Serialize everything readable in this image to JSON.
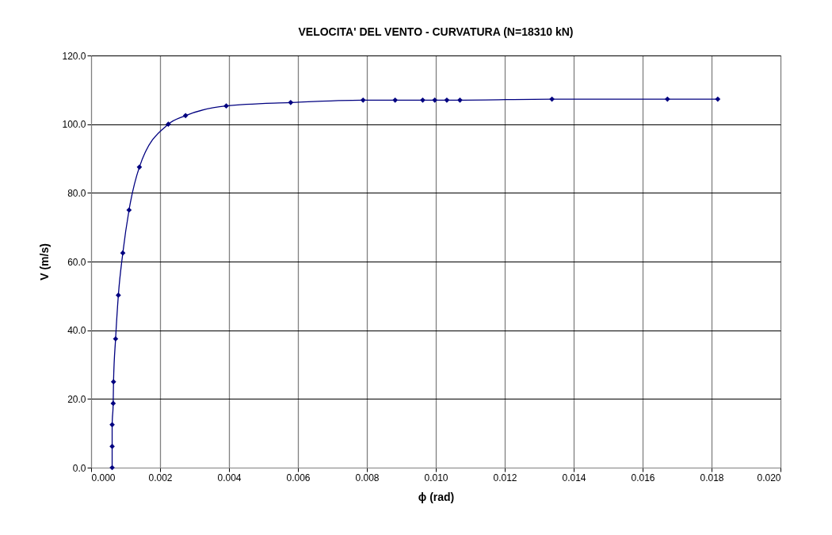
{
  "chart_data": {
    "type": "line",
    "title": "VELOCITA' DEL VENTO - CURVATURA (N=18310 kN)",
    "xlabel": "ϕ (rad)",
    "ylabel": "V (m/s)",
    "x": [
      0.00061,
      0.00061,
      0.00061,
      0.00064,
      0.00065,
      0.00071,
      0.00079,
      0.00092,
      0.0011,
      0.0014,
      0.00224,
      0.00274,
      0.00392,
      0.00579,
      0.00789,
      0.00882,
      0.00962,
      0.00997,
      0.01032,
      0.0107,
      0.01337,
      0.01672,
      0.01818
    ],
    "series": [
      {
        "color": "#000080",
        "values": [
          0,
          6.2,
          12.5,
          18.7,
          25,
          37.5,
          50.2,
          62.5,
          75,
          87.5,
          100,
          102.5,
          105.3,
          106.3,
          107,
          107,
          107,
          107,
          107,
          107,
          107.3,
          107.3,
          107.3
        ]
      }
    ],
    "xlim": [
      0,
      0.02
    ],
    "ylim": [
      0,
      120
    ],
    "xticks": [
      {
        "value": 0,
        "label": "0.000"
      },
      {
        "value": 0.002,
        "label": "0.002"
      },
      {
        "value": 0.004,
        "label": "0.004"
      },
      {
        "value": 0.006,
        "label": "0.006"
      },
      {
        "value": 0.008,
        "label": "0.008"
      },
      {
        "value": 0.01,
        "label": "0.010"
      },
      {
        "value": 0.012,
        "label": "0.012"
      },
      {
        "value": 0.014,
        "label": "0.014"
      },
      {
        "value": 0.016,
        "label": "0.016"
      },
      {
        "value": 0.018,
        "label": "0.018"
      },
      {
        "value": 0.02,
        "label": "0.020"
      }
    ],
    "yticks": [
      {
        "value": 0,
        "label": "0.0"
      },
      {
        "value": 20,
        "label": "20.0"
      },
      {
        "value": 40,
        "label": "40.0"
      },
      {
        "value": 60,
        "label": "60.0"
      },
      {
        "value": 80,
        "label": "80.0"
      },
      {
        "value": 100,
        "label": "100.0"
      },
      {
        "value": 120,
        "label": "120.0"
      }
    ],
    "grid": true,
    "marker": "diamond",
    "line_style": "solid"
  }
}
